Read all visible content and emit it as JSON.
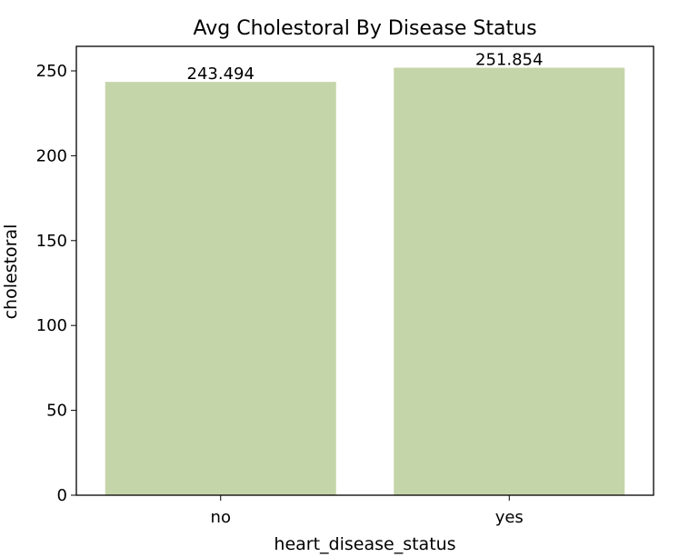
{
  "chart_data": {
    "type": "bar",
    "title": "Avg Cholestoral By Disease Status",
    "xlabel": "heart_disease_status",
    "ylabel": "cholestoral",
    "categories": [
      "no",
      "yes"
    ],
    "values": [
      243.494,
      251.854
    ],
    "data_labels": [
      "243.494",
      "251.854"
    ],
    "ylim": [
      0,
      264.4467
    ],
    "yticks": [
      0,
      50,
      100,
      150,
      200,
      250
    ],
    "grid": false,
    "legend": "none",
    "colors": {
      "bar": "#c5d5aa",
      "axis": "#000000",
      "background": "#ffffff"
    }
  }
}
